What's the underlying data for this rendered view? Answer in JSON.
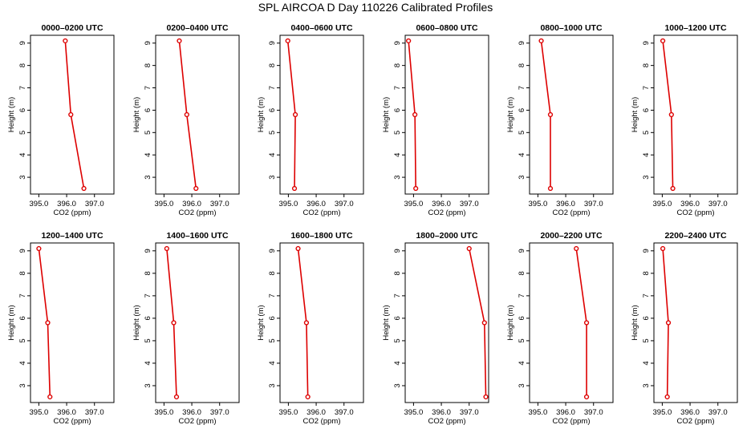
{
  "title": "SPL AIRCOA D  Day 110226  Calibrated Profiles",
  "colors": {
    "profile": "#dd0000",
    "axis": "#000000",
    "background": "#ffffff"
  },
  "chart_data": [
    {
      "type": "line",
      "title": "0000–0200 UTC",
      "xlabel": "CO2 (ppm)",
      "ylabel": "Height (m)",
      "xlim": [
        394.7,
        397.7
      ],
      "ylim": [
        2.25,
        9.35
      ],
      "xticks": [
        395.0,
        396.0,
        397.0
      ],
      "xtick_labels": [
        "395.0",
        "396.0",
        "397.0"
      ],
      "yticks": [
        3,
        4,
        5,
        6,
        7,
        8,
        9
      ],
      "ytick_labels": [
        "3",
        "4",
        "5",
        "6",
        "7",
        "8",
        "9"
      ],
      "series": [
        {
          "name": "profile",
          "x": [
            395.95,
            396.15,
            396.62
          ],
          "y": [
            9.1,
            5.8,
            2.5
          ]
        }
      ]
    },
    {
      "type": "line",
      "title": "0200–0400 UTC",
      "xlabel": "CO2 (ppm)",
      "ylabel": "Height (m)",
      "xlim": [
        394.7,
        397.7
      ],
      "ylim": [
        2.25,
        9.35
      ],
      "xticks": [
        395.0,
        396.0,
        397.0
      ],
      "xtick_labels": [
        "395.0",
        "396.0",
        "397.0"
      ],
      "yticks": [
        3,
        4,
        5,
        6,
        7,
        8,
        9
      ],
      "ytick_labels": [
        "3",
        "4",
        "5",
        "6",
        "7",
        "8",
        "9"
      ],
      "series": [
        {
          "name": "profile",
          "x": [
            395.55,
            395.82,
            396.15
          ],
          "y": [
            9.1,
            5.8,
            2.5
          ]
        }
      ]
    },
    {
      "type": "line",
      "title": "0400–0600 UTC",
      "xlabel": "CO2 (ppm)",
      "ylabel": "Height (m)",
      "xlim": [
        394.7,
        397.7
      ],
      "ylim": [
        2.25,
        9.35
      ],
      "xticks": [
        395.0,
        396.0,
        397.0
      ],
      "xtick_labels": [
        "395.0",
        "396.0",
        "397.0"
      ],
      "yticks": [
        3,
        4,
        5,
        6,
        7,
        8,
        9
      ],
      "ytick_labels": [
        "3",
        "4",
        "5",
        "6",
        "7",
        "8",
        "9"
      ],
      "series": [
        {
          "name": "profile",
          "x": [
            394.98,
            395.25,
            395.22
          ],
          "y": [
            9.1,
            5.8,
            2.5
          ]
        }
      ]
    },
    {
      "type": "line",
      "title": "0600–0800 UTC",
      "xlabel": "CO2 (ppm)",
      "ylabel": "Height (m)",
      "xlim": [
        394.7,
        397.7
      ],
      "ylim": [
        2.25,
        9.35
      ],
      "xticks": [
        395.0,
        396.0,
        397.0
      ],
      "xtick_labels": [
        "395.0",
        "396.0",
        "397.0"
      ],
      "yticks": [
        3,
        4,
        5,
        6,
        7,
        8,
        9
      ],
      "ytick_labels": [
        "3",
        "4",
        "5",
        "6",
        "7",
        "8",
        "9"
      ],
      "series": [
        {
          "name": "profile",
          "x": [
            394.82,
            395.05,
            395.08
          ],
          "y": [
            9.1,
            5.8,
            2.5
          ]
        }
      ]
    },
    {
      "type": "line",
      "title": "0800–1000 UTC",
      "xlabel": "CO2 (ppm)",
      "ylabel": "Height (m)",
      "xlim": [
        394.7,
        397.7
      ],
      "ylim": [
        2.25,
        9.35
      ],
      "xticks": [
        395.0,
        396.0,
        397.0
      ],
      "xtick_labels": [
        "395.0",
        "396.0",
        "397.0"
      ],
      "yticks": [
        3,
        4,
        5,
        6,
        7,
        8,
        9
      ],
      "ytick_labels": [
        "3",
        "4",
        "5",
        "6",
        "7",
        "8",
        "9"
      ],
      "series": [
        {
          "name": "profile",
          "x": [
            395.12,
            395.45,
            395.45
          ],
          "y": [
            9.1,
            5.8,
            2.5
          ]
        }
      ]
    },
    {
      "type": "line",
      "title": "1000–1200 UTC",
      "xlabel": "CO2 (ppm)",
      "ylabel": "Height (m)",
      "xlim": [
        394.7,
        397.7
      ],
      "ylim": [
        2.25,
        9.35
      ],
      "xticks": [
        395.0,
        396.0,
        397.0
      ],
      "xtick_labels": [
        "395.0",
        "396.0",
        "397.0"
      ],
      "yticks": [
        3,
        4,
        5,
        6,
        7,
        8,
        9
      ],
      "ytick_labels": [
        "3",
        "4",
        "5",
        "6",
        "7",
        "8",
        "9"
      ],
      "series": [
        {
          "name": "profile",
          "x": [
            395.02,
            395.33,
            395.38
          ],
          "y": [
            9.1,
            5.8,
            2.5
          ]
        }
      ]
    },
    {
      "type": "line",
      "title": "1200–1400 UTC",
      "xlabel": "CO2 (ppm)",
      "ylabel": "Height (m)",
      "xlim": [
        394.7,
        397.7
      ],
      "ylim": [
        2.25,
        9.35
      ],
      "xticks": [
        395.0,
        396.0,
        397.0
      ],
      "xtick_labels": [
        "395.0",
        "396.0",
        "397.0"
      ],
      "yticks": [
        3,
        4,
        5,
        6,
        7,
        8,
        9
      ],
      "ytick_labels": [
        "3",
        "4",
        "5",
        "6",
        "7",
        "8",
        "9"
      ],
      "series": [
        {
          "name": "profile",
          "x": [
            395.0,
            395.32,
            395.4
          ],
          "y": [
            9.1,
            5.8,
            2.5
          ]
        }
      ]
    },
    {
      "type": "line",
      "title": "1400–1600 UTC",
      "xlabel": "CO2 (ppm)",
      "ylabel": "Height (m)",
      "xlim": [
        394.7,
        397.7
      ],
      "ylim": [
        2.25,
        9.35
      ],
      "xticks": [
        395.0,
        396.0,
        397.0
      ],
      "xtick_labels": [
        "395.0",
        "396.0",
        "397.0"
      ],
      "yticks": [
        3,
        4,
        5,
        6,
        7,
        8,
        9
      ],
      "ytick_labels": [
        "3",
        "4",
        "5",
        "6",
        "7",
        "8",
        "9"
      ],
      "series": [
        {
          "name": "profile",
          "x": [
            395.1,
            395.35,
            395.45
          ],
          "y": [
            9.1,
            5.8,
            2.5
          ]
        }
      ]
    },
    {
      "type": "line",
      "title": "1600–1800 UTC",
      "xlabel": "CO2 (ppm)",
      "ylabel": "Height (m)",
      "xlim": [
        394.7,
        397.7
      ],
      "ylim": [
        2.25,
        9.35
      ],
      "xticks": [
        395.0,
        396.0,
        397.0
      ],
      "xtick_labels": [
        "395.0",
        "396.0",
        "397.0"
      ],
      "yticks": [
        3,
        4,
        5,
        6,
        7,
        8,
        9
      ],
      "ytick_labels": [
        "3",
        "4",
        "5",
        "6",
        "7",
        "8",
        "9"
      ],
      "series": [
        {
          "name": "profile",
          "x": [
            395.35,
            395.65,
            395.7
          ],
          "y": [
            9.1,
            5.8,
            2.5
          ]
        }
      ]
    },
    {
      "type": "line",
      "title": "1800–2000 UTC",
      "xlabel": "CO2 (ppm)",
      "ylabel": "Height (m)",
      "xlim": [
        394.7,
        397.7
      ],
      "ylim": [
        2.25,
        9.35
      ],
      "xticks": [
        395.0,
        396.0,
        397.0
      ],
      "xtick_labels": [
        "395.0",
        "396.0",
        "397.0"
      ],
      "yticks": [
        3,
        4,
        5,
        6,
        7,
        8,
        9
      ],
      "ytick_labels": [
        "3",
        "4",
        "5",
        "6",
        "7",
        "8",
        "9"
      ],
      "series": [
        {
          "name": "profile",
          "x": [
            397.0,
            397.55,
            397.6
          ],
          "y": [
            9.1,
            5.8,
            2.5
          ]
        }
      ]
    },
    {
      "type": "line",
      "title": "2000–2200 UTC",
      "xlabel": "CO2 (ppm)",
      "ylabel": "Height (m)",
      "xlim": [
        394.7,
        397.7
      ],
      "ylim": [
        2.25,
        9.35
      ],
      "xticks": [
        395.0,
        396.0,
        397.0
      ],
      "xtick_labels": [
        "395.0",
        "396.0",
        "397.0"
      ],
      "yticks": [
        3,
        4,
        5,
        6,
        7,
        8,
        9
      ],
      "ytick_labels": [
        "3",
        "4",
        "5",
        "6",
        "7",
        "8",
        "9"
      ],
      "series": [
        {
          "name": "profile",
          "x": [
            396.38,
            396.75,
            396.75
          ],
          "y": [
            9.1,
            5.8,
            2.5
          ]
        }
      ]
    },
    {
      "type": "line",
      "title": "2200–2400 UTC",
      "xlabel": "CO2 (ppm)",
      "ylabel": "Height (m)",
      "xlim": [
        394.7,
        397.7
      ],
      "ylim": [
        2.25,
        9.35
      ],
      "xticks": [
        395.0,
        396.0,
        397.0
      ],
      "xtick_labels": [
        "395.0",
        "396.0",
        "397.0"
      ],
      "yticks": [
        3,
        4,
        5,
        6,
        7,
        8,
        9
      ],
      "ytick_labels": [
        "3",
        "4",
        "5",
        "6",
        "7",
        "8",
        "9"
      ],
      "series": [
        {
          "name": "profile",
          "x": [
            395.02,
            395.22,
            395.18
          ],
          "y": [
            9.1,
            5.8,
            2.5
          ]
        }
      ]
    }
  ]
}
